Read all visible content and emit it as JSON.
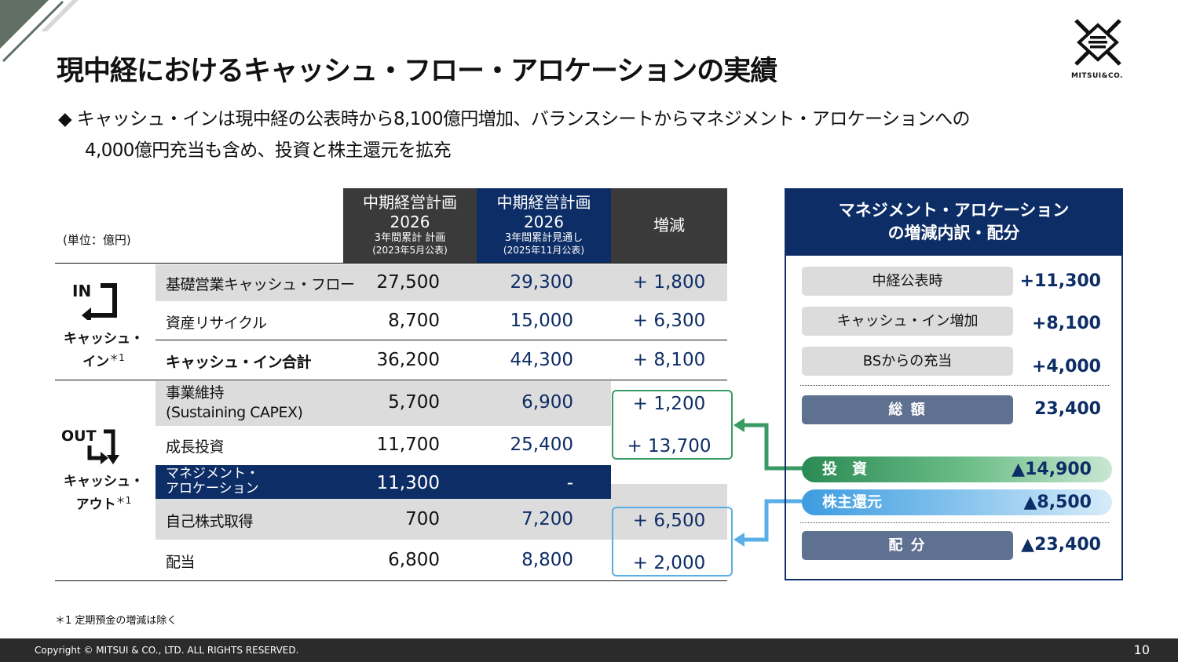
{
  "header": {
    "title": "現中経におけるキャッシュ・フロー・アロケーションの実績",
    "logo_text": "MITSUI&CO."
  },
  "bullet": {
    "marker": "◆",
    "line1": "キャッシュ・インは現中経の公表時から8,100億円増加、バランスシートからマネジメント・アロケーションへの",
    "line2": "4,000億円充当も含め、投資と株主還元を拡充"
  },
  "table": {
    "unit_label": "(単位：億円)",
    "columns": [
      {
        "main": "中期経営計画",
        "year": "2026",
        "sub": "3年間累計 計画",
        "date": "(2023年5月公表)"
      },
      {
        "main": "中期経営計画",
        "year": "2026",
        "sub": "3年間累計見通し",
        "date": "(2025年11月公表)"
      },
      {
        "main": "増減"
      }
    ],
    "in_group": {
      "icon": "IN",
      "label_line1": "キャッシュ・",
      "label_line2": "イン",
      "note": "＊1"
    },
    "out_group": {
      "icon": "OUT",
      "label_line1": "キャッシュ・",
      "label_line2": "アウト",
      "note": "＊1"
    },
    "rows": [
      {
        "label": "基礎営業キャッシュ・フロー",
        "plan": "27,500",
        "forecast": "29,300",
        "diff": "+ 1,800"
      },
      {
        "label": "資産リサイクル",
        "plan": "8,700",
        "forecast": "15,000",
        "diff": "+ 6,300"
      },
      {
        "label": "キャッシュ・イン合計",
        "plan": "36,200",
        "forecast": "44,300",
        "diff": "+ 8,100"
      },
      {
        "label_line1": "事業維持",
        "label_line2": "(Sustaining CAPEX)",
        "plan": "5,700",
        "forecast": "6,900",
        "diff": "+ 1,200"
      },
      {
        "label": "成長投資",
        "plan": "11,700",
        "forecast": "25,400",
        "diff": "+ 13,700"
      },
      {
        "label_line1": "マネジメント・",
        "label_line2": "アロケーション",
        "plan": "11,300",
        "forecast": "-"
      },
      {
        "label": "自己株式取得",
        "plan": "700",
        "forecast": "7,200",
        "diff": "+ 6,500"
      },
      {
        "label": "配当",
        "plan": "6,800",
        "forecast": "8,800",
        "diff": "+ 2,000"
      }
    ]
  },
  "panel": {
    "title_line1": "マネジメント・アロケーション",
    "title_line2": "の増減内訳・配分",
    "items": [
      {
        "label": "中経公表時",
        "value": "+11,300"
      },
      {
        "label": "キャッシュ・イン増加",
        "value": "+8,100"
      },
      {
        "label": "BSからの充当",
        "value": "+4,000"
      }
    ],
    "total": {
      "label": "総 額",
      "value": "23,400"
    },
    "invest": {
      "label": "投　資",
      "value": "▲14,900"
    },
    "shareholder": {
      "label": "株主還元",
      "value": "▲8,500"
    },
    "allocation": {
      "label": "配 分",
      "value": "▲23,400"
    }
  },
  "footnote": "＊1 定期預金の増減は除く",
  "footer": {
    "copyright": "Copyright © MITSUI & CO., LTD. ALL RIGHTS RESERVED.",
    "page_number": "10"
  },
  "colors": {
    "navy": "#0d2d66",
    "dark_gray": "#3a3a3a",
    "green": "#3a9a64",
    "blue": "#5aaee6",
    "light_gray": "#dcdcdc"
  }
}
